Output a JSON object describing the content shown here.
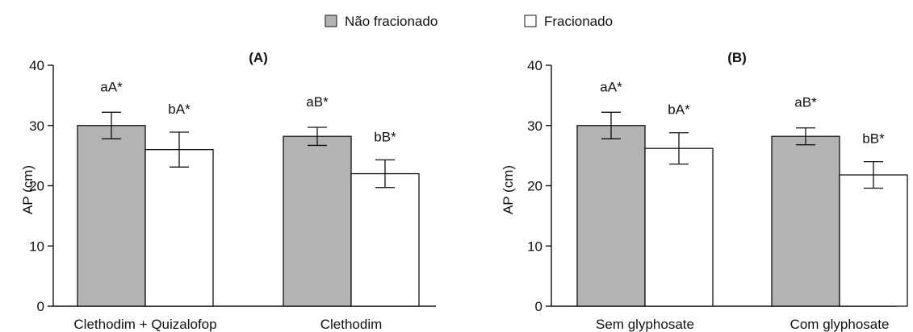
{
  "legend": {
    "items": [
      {
        "label": "Não fracionado",
        "color": "#b3b3b3"
      },
      {
        "label": "Fracionado",
        "color": "#ffffff"
      }
    ]
  },
  "chart_data": [
    {
      "type": "bar",
      "title": "(A)",
      "ylabel": "AP (cm)",
      "ylim": [
        0,
        40
      ],
      "yticks": [
        0,
        10,
        20,
        30,
        40
      ],
      "categories": [
        "Clethodim + Quizalofop",
        "Clethodim"
      ],
      "series": [
        {
          "name": "Não fracionado",
          "color": "#b3b3b3",
          "values": [
            30.0,
            28.2
          ],
          "errors": [
            2.2,
            1.5
          ],
          "labels": [
            "aA*",
            "aB*"
          ]
        },
        {
          "name": "Fracionado",
          "color": "#ffffff",
          "values": [
            26.0,
            22.0
          ],
          "errors": [
            2.9,
            2.3
          ],
          "labels": [
            "bA*",
            "bB*"
          ]
        }
      ]
    },
    {
      "type": "bar",
      "title": "(B)",
      "ylabel": "AP (cm)",
      "ylim": [
        0,
        40
      ],
      "yticks": [
        0,
        10,
        20,
        30,
        40
      ],
      "categories": [
        "Sem glyphosate",
        "Com glyphosate"
      ],
      "series": [
        {
          "name": "Não fracionado",
          "color": "#b3b3b3",
          "values": [
            30.0,
            28.2
          ],
          "errors": [
            2.2,
            1.4
          ],
          "labels": [
            "aA*",
            "aB*"
          ]
        },
        {
          "name": "Fracionado",
          "color": "#ffffff",
          "values": [
            26.2,
            21.8
          ],
          "errors": [
            2.6,
            2.2
          ],
          "labels": [
            "bA*",
            "bB*"
          ]
        }
      ]
    }
  ]
}
